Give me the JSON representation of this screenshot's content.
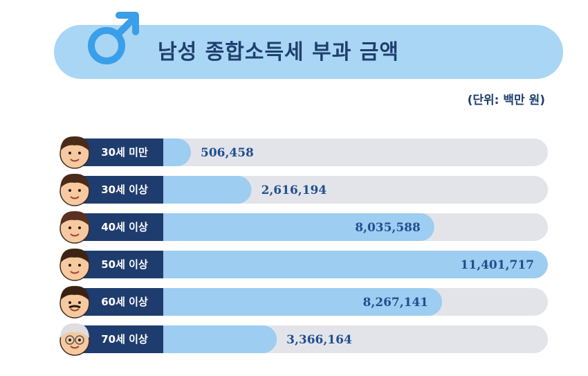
{
  "title": "남성 종합소득세 부과 금액",
  "unit": "(단위: 백만 원)",
  "colors": {
    "banner": "#a9d6f4",
    "bar_fill": "#9dcdf1",
    "track": "#e3e4ea",
    "label_tab": "#1f3c6e",
    "value_text": "#1f4f8f",
    "icon": "#3b9ee8"
  },
  "icons": {
    "title_icon": "male-symbol-icon"
  },
  "chart_data": {
    "type": "bar",
    "orientation": "horizontal",
    "title": "남성 종합소득세 부과 금액",
    "unit": "(단위: 백만 원)",
    "categories": [
      "30세 미만",
      "30세 이상",
      "40세 이상",
      "50세 이상",
      "60세 이상",
      "70세 이상"
    ],
    "values": [
      506458,
      2616194,
      8035588,
      11401717,
      8267141,
      3366164
    ],
    "value_labels": [
      "506,458",
      "2,616,194",
      "8,035,588",
      "11,401,717",
      "8,267,141",
      "3,366,164"
    ],
    "xlim": [
      0,
      11401717
    ],
    "grid": false,
    "legend": "none"
  }
}
